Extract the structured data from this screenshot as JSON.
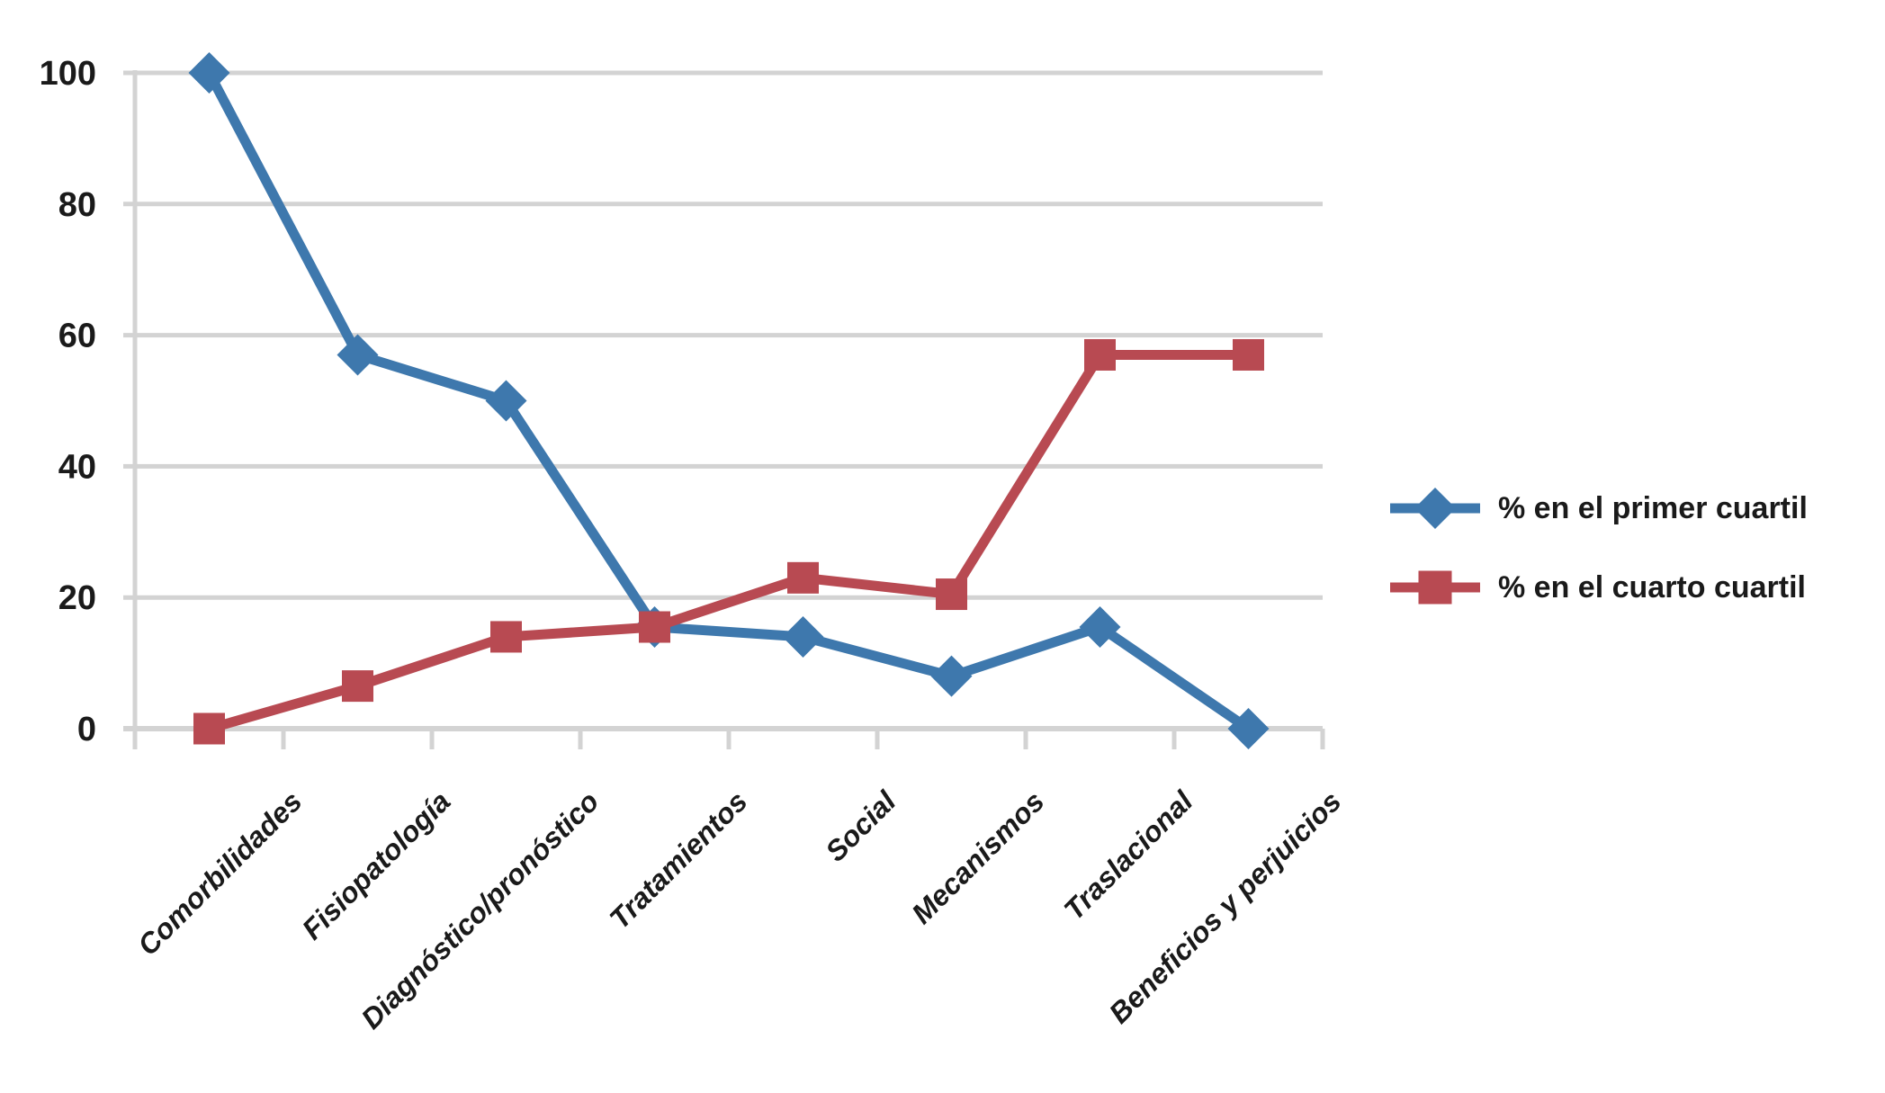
{
  "chart_data": {
    "type": "line",
    "title": "",
    "categories": [
      "Comorbilidades",
      "Fisiopatología",
      "Diagnóstico/pronóstico",
      "Tratamientos",
      "Social",
      "Mecanismos",
      "Traslacional",
      "Beneficios y perjuicios"
    ],
    "series": [
      {
        "name": "% en el primer cuartil",
        "marker": "diamond",
        "color": "#3E78AD",
        "values": [
          100,
          57,
          50,
          15.5,
          14,
          8,
          15.5,
          0
        ]
      },
      {
        "name": "% en el cuarto cuartil",
        "marker": "square",
        "color": "#B84A52",
        "values": [
          0,
          6.5,
          14,
          15.5,
          23,
          20.5,
          57,
          57
        ]
      }
    ],
    "xlabel": "",
    "ylabel": "",
    "ylim": [
      0,
      100
    ],
    "yticks": [
      0,
      20,
      40,
      60,
      80,
      100
    ],
    "grid": "horizontal-only",
    "legend_position": "right-center",
    "x_label_rotation_deg": -45,
    "colors": {
      "gridline": "#D3D3D3",
      "axis": "#D3D3D3",
      "tick_text": "#1A1A1A",
      "background": "#FFFFFF"
    }
  }
}
